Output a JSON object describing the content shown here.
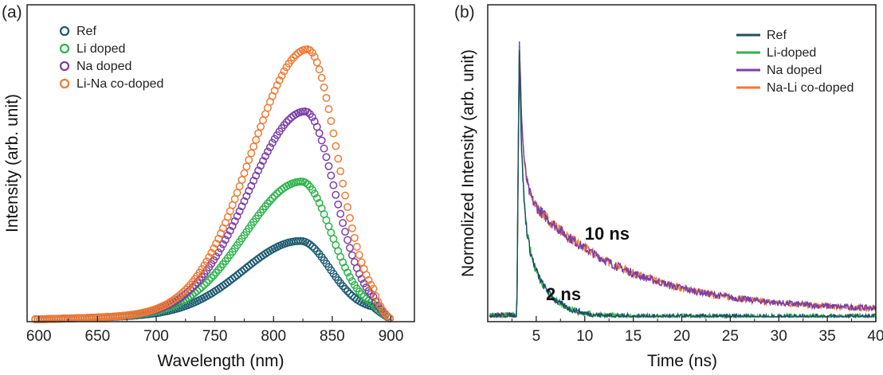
{
  "chart_data": [
    {
      "panel_label": "(a)",
      "type": "scatter",
      "xlabel": "Wavelength (nm)",
      "ylabel": "Intensity (arb. unit)",
      "xlim": [
        590,
        920
      ],
      "ylim": [
        0,
        1.0
      ],
      "xticks": [
        "600",
        "650",
        "700",
        "750",
        "800",
        "850",
        "900"
      ],
      "legend_position": "top-left",
      "marker": "open-circle",
      "series": [
        {
          "name": "Ref",
          "color": "#1d5a70",
          "peak_x": 823,
          "peak_y": 0.29
        },
        {
          "name": "Li doped",
          "color": "#2db34a",
          "peak_x": 824,
          "peak_y": 0.51
        },
        {
          "name": "Na doped",
          "color": "#7a3fa8",
          "peak_x": 827,
          "peak_y": 0.77
        },
        {
          "name": "Li-Na co-doped",
          "color": "#f07a32",
          "peak_x": 829,
          "peak_y": 1.0
        }
      ]
    },
    {
      "panel_label": "(b)",
      "type": "line",
      "xlabel": "Time (ns)",
      "ylabel": "Normolized Intensity (arb. unit)",
      "xlim": [
        0,
        40
      ],
      "ylim": [
        0,
        1.0
      ],
      "xticks": [
        "5",
        "10",
        "15",
        "20",
        "25",
        "30",
        "35",
        "40"
      ],
      "legend_position": "top-right",
      "annotations": [
        {
          "text": "10 ns",
          "x": 10,
          "y": 0.28
        },
        {
          "text": "2 ns",
          "x": 6,
          "y": 0.06
        }
      ],
      "series": [
        {
          "name": "Ref",
          "color": "#1d4f63",
          "rise_x": 3.0,
          "tau": 2
        },
        {
          "name": "Li-doped",
          "color": "#2db34a",
          "rise_x": 3.0,
          "tau": 2
        },
        {
          "name": "Na doped",
          "color": "#7a3fa8",
          "rise_x": 3.0,
          "tau": 10
        },
        {
          "name": "Na-Li co-doped",
          "color": "#f07a32",
          "rise_x": 3.0,
          "tau": 10
        }
      ]
    }
  ]
}
